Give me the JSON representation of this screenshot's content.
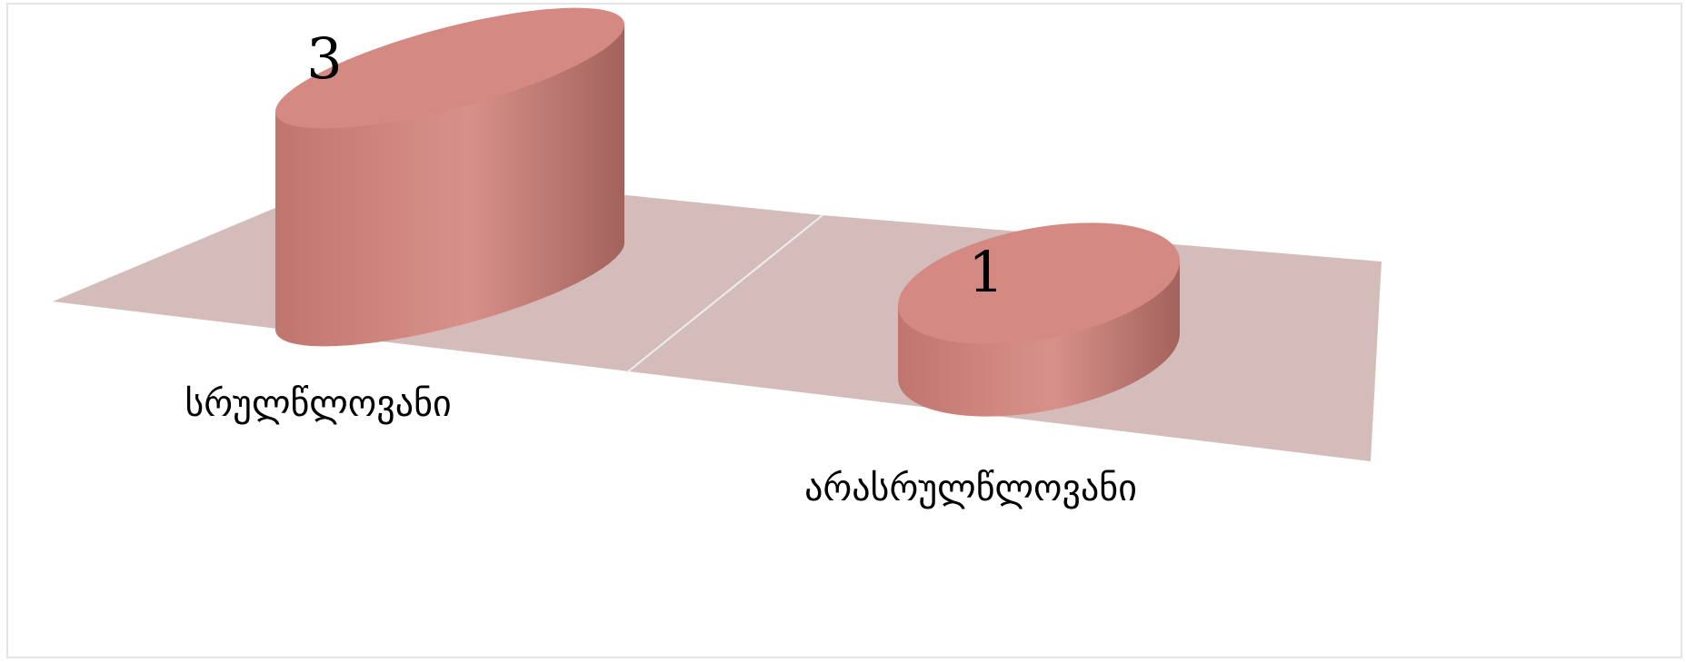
{
  "chart_data": {
    "type": "bar",
    "categories": [
      "სრულწლოვანი",
      "არასრულწლოვანი"
    ],
    "values": [
      3,
      1
    ],
    "color": "#d48a82",
    "ylim": [
      0,
      3
    ]
  }
}
